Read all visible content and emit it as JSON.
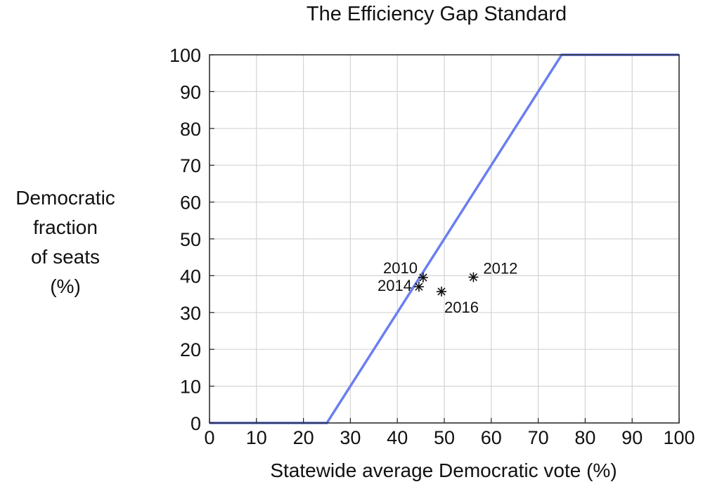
{
  "chart_data": {
    "type": "line",
    "title": "The Efficiency Gap Standard",
    "xlabel": "Statewide average Democratic vote (%)",
    "ylabel": [
      "Democratic",
      "fraction",
      "of seats",
      "(%)"
    ],
    "xlim": [
      0,
      100
    ],
    "ylim": [
      0,
      100
    ],
    "xticks": [
      0,
      10,
      20,
      30,
      40,
      50,
      60,
      70,
      80,
      90,
      100
    ],
    "yticks": [
      0,
      10,
      20,
      30,
      40,
      50,
      60,
      70,
      80,
      90,
      100
    ],
    "grid": true,
    "series": [
      {
        "type": "line",
        "color": "#6b7ff0",
        "x": [
          0,
          25,
          75,
          100
        ],
        "y": [
          0,
          0,
          100,
          100
        ]
      },
      {
        "type": "scatter",
        "marker": "asterisk",
        "color": "#111111",
        "points": [
          {
            "label": "2010",
            "x": 45.5,
            "y": 39.5
          },
          {
            "label": "2012",
            "x": 56.2,
            "y": 39.6
          },
          {
            "label": "2014",
            "x": 44.6,
            "y": 37.0
          },
          {
            "label": "2016",
            "x": 49.4,
            "y": 35.7
          }
        ]
      }
    ]
  }
}
